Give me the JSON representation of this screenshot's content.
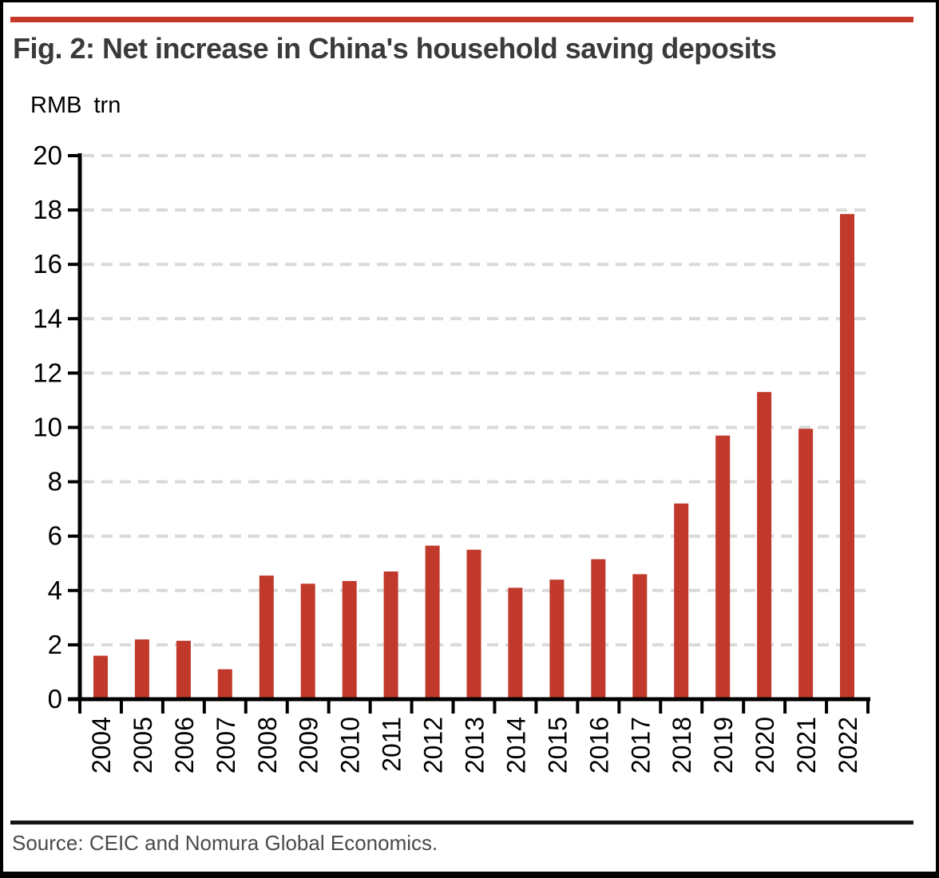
{
  "figure": {
    "title": "Fig. 2: Net increase in China's household saving deposits",
    "unit_label": "RMB trn",
    "source": "Source: CEIC and Nomura Global Economics."
  },
  "colors": {
    "top_rule": "#c5392b",
    "bar": "#c0392b",
    "gridline": "#d9d9d9",
    "axis": "#000000",
    "footer_rule": "#141414",
    "title_text": "#3a3a3c",
    "source_text": "#4a4a4a"
  },
  "chart_data": {
    "type": "bar",
    "title": "Fig. 2: Net increase in China's household saving deposits",
    "xlabel": "",
    "ylabel": "RMB trn",
    "categories": [
      "2004",
      "2005",
      "2006",
      "2007",
      "2008",
      "2009",
      "2010",
      "2011",
      "2012",
      "2013",
      "2014",
      "2015",
      "2016",
      "2017",
      "2018",
      "2019",
      "2020",
      "2021",
      "2022"
    ],
    "values": [
      1.6,
      2.2,
      2.15,
      1.1,
      4.55,
      4.25,
      4.35,
      4.7,
      5.65,
      5.5,
      4.1,
      4.4,
      5.15,
      4.6,
      7.2,
      9.7,
      11.3,
      9.95,
      17.85
    ],
    "ylim": [
      0,
      20
    ],
    "ytick_step": 2,
    "grid": "horizontal-dashed",
    "legend": "none",
    "bar_color": "#c0392b"
  }
}
